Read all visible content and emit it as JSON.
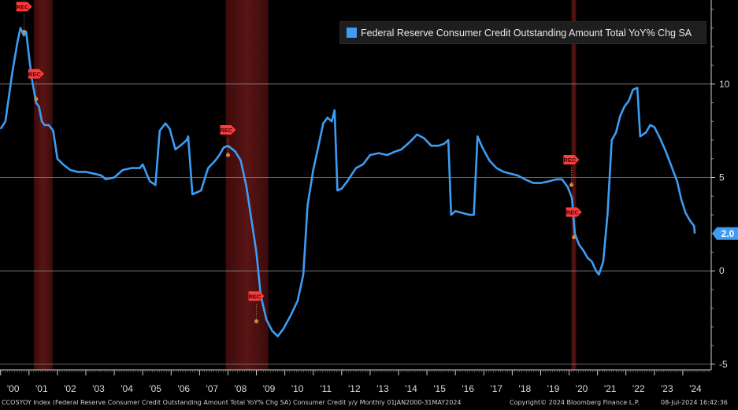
{
  "chart_data": {
    "type": "line",
    "series": [
      {
        "name": "Federal Reserve Consumer Credit Outstanding Amount Total YoY% Chg SA",
        "color": "#3d9df3",
        "last_value_label": "2.0",
        "points": [
          [
            2000.0,
            7.6
          ],
          [
            2000.17,
            8.0
          ],
          [
            2000.4,
            10.5
          ],
          [
            2000.6,
            12.3
          ],
          [
            2000.7,
            13.0
          ],
          [
            2000.82,
            12.6
          ],
          [
            2000.9,
            12.8
          ],
          [
            2001.0,
            11.5
          ],
          [
            2001.1,
            10.3
          ],
          [
            2001.25,
            9.0
          ],
          [
            2001.35,
            8.8
          ],
          [
            2001.45,
            8.0
          ],
          [
            2001.55,
            7.8
          ],
          [
            2001.7,
            7.8
          ],
          [
            2001.85,
            7.5
          ],
          [
            2002.0,
            6.0
          ],
          [
            2002.2,
            5.7
          ],
          [
            2002.45,
            5.4
          ],
          [
            2002.7,
            5.3
          ],
          [
            2003.0,
            5.3
          ],
          [
            2003.3,
            5.2
          ],
          [
            2003.55,
            5.1
          ],
          [
            2003.7,
            4.9
          ],
          [
            2004.0,
            5.0
          ],
          [
            2004.3,
            5.4
          ],
          [
            2004.6,
            5.5
          ],
          [
            2004.9,
            5.5
          ],
          [
            2005.0,
            5.7
          ],
          [
            2005.25,
            4.8
          ],
          [
            2005.45,
            4.6
          ],
          [
            2005.6,
            7.5
          ],
          [
            2005.8,
            7.9
          ],
          [
            2005.95,
            7.6
          ],
          [
            2006.15,
            6.5
          ],
          [
            2006.4,
            6.8
          ],
          [
            2006.55,
            7.0
          ],
          [
            2006.6,
            7.2
          ],
          [
            2006.75,
            4.1
          ],
          [
            2006.9,
            4.2
          ],
          [
            2007.05,
            4.3
          ],
          [
            2007.3,
            5.5
          ],
          [
            2007.55,
            5.9
          ],
          [
            2007.7,
            6.2
          ],
          [
            2007.85,
            6.6
          ],
          [
            2008.0,
            6.7
          ],
          [
            2008.25,
            6.4
          ],
          [
            2008.45,
            5.9
          ],
          [
            2008.65,
            4.5
          ],
          [
            2008.85,
            2.5
          ],
          [
            2009.0,
            1.0
          ],
          [
            2009.15,
            -1.3
          ],
          [
            2009.35,
            -2.6
          ],
          [
            2009.55,
            -3.2
          ],
          [
            2009.75,
            -3.5
          ],
          [
            2009.95,
            -3.1
          ],
          [
            2010.2,
            -2.4
          ],
          [
            2010.45,
            -1.6
          ],
          [
            2010.65,
            -0.2
          ],
          [
            2010.8,
            3.5
          ],
          [
            2011.0,
            5.4
          ],
          [
            2011.2,
            6.8
          ],
          [
            2011.35,
            7.9
          ],
          [
            2011.5,
            8.2
          ],
          [
            2011.65,
            8.0
          ],
          [
            2011.75,
            8.6
          ],
          [
            2011.85,
            4.3
          ],
          [
            2012.0,
            4.4
          ],
          [
            2012.2,
            4.8
          ],
          [
            2012.5,
            5.5
          ],
          [
            2012.75,
            5.7
          ],
          [
            2013.0,
            6.2
          ],
          [
            2013.3,
            6.3
          ],
          [
            2013.6,
            6.2
          ],
          [
            2013.9,
            6.4
          ],
          [
            2014.1,
            6.5
          ],
          [
            2014.4,
            6.9
          ],
          [
            2014.65,
            7.3
          ],
          [
            2014.9,
            7.1
          ],
          [
            2015.15,
            6.7
          ],
          [
            2015.4,
            6.7
          ],
          [
            2015.6,
            6.8
          ],
          [
            2015.75,
            7.0
          ],
          [
            2015.85,
            3.0
          ],
          [
            2016.0,
            3.2
          ],
          [
            2016.25,
            3.1
          ],
          [
            2016.5,
            3.0
          ],
          [
            2016.65,
            3.0
          ],
          [
            2016.78,
            7.2
          ],
          [
            2016.95,
            6.6
          ],
          [
            2017.2,
            5.9
          ],
          [
            2017.45,
            5.5
          ],
          [
            2017.7,
            5.3
          ],
          [
            2017.95,
            5.2
          ],
          [
            2018.2,
            5.1
          ],
          [
            2018.45,
            4.9
          ],
          [
            2018.75,
            4.7
          ],
          [
            2019.0,
            4.7
          ],
          [
            2019.3,
            4.8
          ],
          [
            2019.55,
            4.9
          ],
          [
            2019.75,
            4.9
          ],
          [
            2019.95,
            4.5
          ],
          [
            2020.1,
            3.9
          ],
          [
            2020.2,
            2.0
          ],
          [
            2020.35,
            1.4
          ],
          [
            2020.5,
            1.1
          ],
          [
            2020.65,
            0.7
          ],
          [
            2020.8,
            0.5
          ],
          [
            2020.95,
            0.0
          ],
          [
            2021.05,
            -0.2
          ],
          [
            2021.2,
            0.5
          ],
          [
            2021.35,
            3.0
          ],
          [
            2021.5,
            7.0
          ],
          [
            2021.65,
            7.4
          ],
          [
            2021.8,
            8.3
          ],
          [
            2021.95,
            8.8
          ],
          [
            2022.1,
            9.1
          ],
          [
            2022.25,
            9.7
          ],
          [
            2022.4,
            9.8
          ],
          [
            2022.5,
            7.2
          ],
          [
            2022.7,
            7.4
          ],
          [
            2022.85,
            7.8
          ],
          [
            2023.0,
            7.7
          ],
          [
            2023.2,
            7.1
          ],
          [
            2023.4,
            6.4
          ],
          [
            2023.6,
            5.6
          ],
          [
            2023.8,
            4.8
          ],
          [
            2023.95,
            3.8
          ],
          [
            2024.1,
            3.1
          ],
          [
            2024.25,
            2.7
          ],
          [
            2024.4,
            2.4
          ],
          [
            2024.42,
            2.0
          ]
        ]
      }
    ],
    "recessions": [
      [
        2001.17,
        2001.83
      ],
      [
        2007.92,
        2009.42
      ],
      [
        2020.08,
        2020.25
      ]
    ],
    "rec_marker_text": "REC",
    "rec_markers": [
      [
        2000.83,
        12.8
      ],
      [
        2001.25,
        9.2
      ],
      [
        2008.0,
        6.2
      ],
      [
        2009.0,
        -2.7
      ],
      [
        2020.08,
        4.6
      ],
      [
        2020.17,
        1.8
      ]
    ],
    "x_tick_labels": [
      "'00",
      "'01",
      "'02",
      "'03",
      "'04",
      "'05",
      "'06",
      "'07",
      "'08",
      "'09",
      "'10",
      "'11",
      "'12",
      "'13",
      "'14",
      "'15",
      "'16",
      "'17",
      "'18",
      "'19",
      "'20",
      "'21",
      "'22",
      "'23",
      "'24"
    ],
    "x_tick_years": [
      2000,
      2001,
      2002,
      2003,
      2004,
      2005,
      2006,
      2007,
      2008,
      2009,
      2010,
      2011,
      2012,
      2013,
      2014,
      2015,
      2016,
      2017,
      2018,
      2019,
      2020,
      2021,
      2022,
      2023,
      2024
    ],
    "y_ticks": [
      10,
      5,
      0,
      -5
    ],
    "y_tick_labels": [
      "10",
      "5",
      "0",
      "-5"
    ],
    "xlim": [
      1999.98,
      2025.0
    ],
    "ylim": [
      -5.3,
      14.5
    ],
    "grid": true,
    "legend_position": "top-right",
    "y_axis_side": "right"
  },
  "footer": {
    "description": "CCOSYOY Index (Federal Reserve Consumer Credit Outstanding Amount Total YoY% Chg SA) Consumer Credit y/y  Monthly 01JAN2000-31MAY2024",
    "copyright": "Copyright© 2024 Bloomberg Finance L.P.",
    "timestamp": "08-Jul-2024 16:42:36"
  },
  "colors": {
    "background": "#000000",
    "series": "#3d9df3",
    "recession": "#5a1414",
    "grid": "#8a8a8a",
    "rec_marker": "#ff3b3b"
  }
}
